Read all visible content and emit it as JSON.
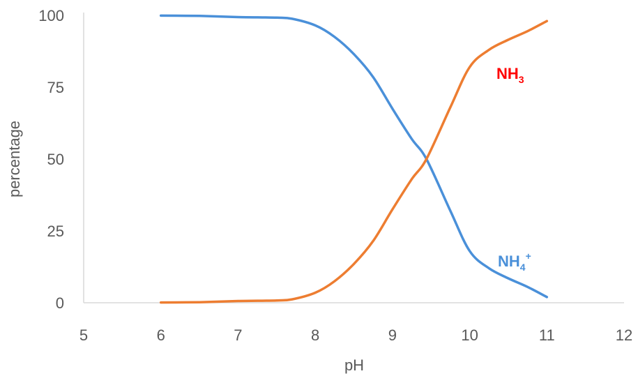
{
  "chart_data": {
    "type": "line",
    "title": "",
    "xlabel": "pH",
    "ylabel": "percentage",
    "xlim": [
      5,
      12
    ],
    "ylim": [
      0,
      100
    ],
    "x_ticks": [
      "5",
      "6",
      "7",
      "8",
      "9",
      "10",
      "11",
      "12"
    ],
    "y_ticks": [
      "0",
      "25",
      "50",
      "75",
      "100"
    ],
    "grid": false,
    "series": [
      {
        "name": "NH4+",
        "label_main": "NH",
        "label_sub": "4",
        "label_sup": "+",
        "color": "#4A90D9",
        "x": [
          6.0,
          6.5,
          7.0,
          7.5,
          7.7,
          8.0,
          8.25,
          8.5,
          8.75,
          9.0,
          9.25,
          9.44,
          9.75,
          10.0,
          10.25,
          10.5,
          10.75,
          11.0
        ],
        "y": [
          99.9,
          99.8,
          99.4,
          99.2,
          98.8,
          96.5,
          92.5,
          86.5,
          78.5,
          67.5,
          57.0,
          50.0,
          32.0,
          18.0,
          12.0,
          8.5,
          5.5,
          2.0
        ]
      },
      {
        "name": "NH3",
        "label_main": "NH",
        "label_sub": "3",
        "label_sup": "",
        "color": "#ED7D31",
        "x": [
          6.0,
          6.5,
          7.0,
          7.5,
          7.7,
          8.0,
          8.25,
          8.5,
          8.75,
          9.0,
          9.25,
          9.44,
          9.75,
          10.0,
          10.25,
          10.5,
          10.75,
          11.0
        ],
        "y": [
          0.1,
          0.2,
          0.6,
          0.8,
          1.2,
          3.5,
          7.5,
          13.5,
          21.5,
          32.5,
          43.0,
          50.0,
          68.0,
          82.0,
          88.0,
          91.5,
          94.5,
          98.0
        ]
      }
    ]
  }
}
